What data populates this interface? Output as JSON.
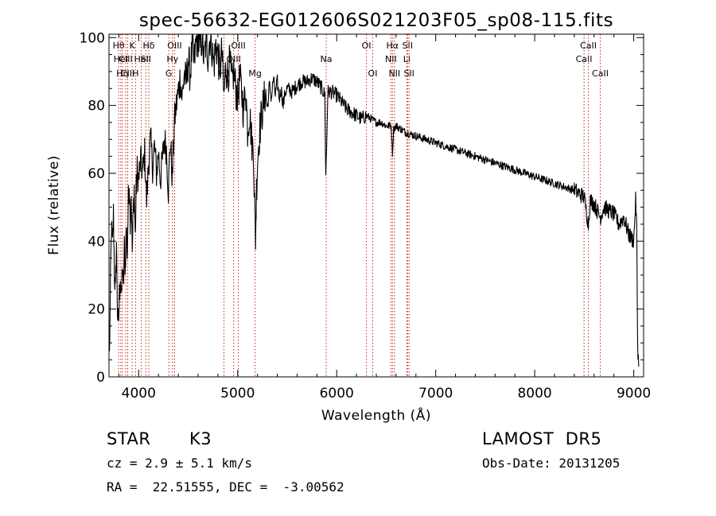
{
  "chart_data": {
    "type": "line",
    "title": "spec-56632-EG012606S021203F05_sp08-115.fits",
    "xlabel": "Wavelength (Å)",
    "ylabel": "Flux (relative)",
    "xlim": [
      3700,
      9100
    ],
    "ylim": [
      0,
      101
    ],
    "x_ticks": [
      4000,
      5000,
      6000,
      7000,
      8000,
      9000
    ],
    "y_ticks": [
      0,
      20,
      40,
      60,
      80,
      100
    ],
    "grid": false,
    "series": [
      {
        "color": "#000000",
        "anchors": [
          [
            3705,
            6
          ],
          [
            3715,
            28
          ],
          [
            3725,
            44
          ],
          [
            3735,
            38
          ],
          [
            3745,
            48
          ],
          [
            3755,
            31
          ],
          [
            3765,
            24
          ],
          [
            3775,
            40
          ],
          [
            3785,
            20
          ],
          [
            3795,
            14
          ],
          [
            3805,
            24
          ],
          [
            3815,
            30
          ],
          [
            3825,
            22
          ],
          [
            3835,
            33
          ],
          [
            3845,
            25
          ],
          [
            3855,
            38
          ],
          [
            3865,
            32
          ],
          [
            3875,
            45
          ],
          [
            3885,
            36
          ],
          [
            3895,
            52
          ],
          [
            3905,
            58
          ],
          [
            3915,
            47
          ],
          [
            3925,
            54
          ],
          [
            3935,
            37
          ],
          [
            3945,
            48
          ],
          [
            3955,
            56
          ],
          [
            3965,
            41
          ],
          [
            3975,
            55
          ],
          [
            3985,
            61
          ],
          [
            4000,
            58
          ],
          [
            4020,
            64
          ],
          [
            4040,
            60
          ],
          [
            4060,
            66
          ],
          [
            4080,
            52
          ],
          [
            4100,
            63
          ],
          [
            4120,
            70
          ],
          [
            4140,
            62
          ],
          [
            4160,
            68
          ],
          [
            4180,
            60
          ],
          [
            4200,
            66
          ],
          [
            4220,
            58
          ],
          [
            4240,
            64
          ],
          [
            4260,
            70
          ],
          [
            4280,
            67
          ],
          [
            4300,
            55
          ],
          [
            4320,
            70
          ],
          [
            4340,
            58
          ],
          [
            4360,
            75
          ],
          [
            4380,
            80
          ],
          [
            4400,
            84
          ],
          [
            4420,
            88
          ],
          [
            4440,
            82
          ],
          [
            4460,
            90
          ],
          [
            4480,
            86
          ],
          [
            4500,
            94
          ],
          [
            4520,
            89
          ],
          [
            4540,
            97
          ],
          [
            4560,
            92
          ],
          [
            4580,
            99
          ],
          [
            4600,
            100
          ],
          [
            4620,
            96
          ],
          [
            4640,
            100
          ],
          [
            4660,
            93
          ],
          [
            4680,
            99
          ],
          [
            4700,
            95
          ],
          [
            4720,
            100
          ],
          [
            4740,
            97
          ],
          [
            4760,
            92
          ],
          [
            4780,
            98
          ],
          [
            4800,
            95
          ],
          [
            4820,
            90
          ],
          [
            4840,
            96
          ],
          [
            4860,
            82
          ],
          [
            4880,
            92
          ],
          [
            4900,
            88
          ],
          [
            4920,
            93
          ],
          [
            4940,
            86
          ],
          [
            4960,
            90
          ],
          [
            4980,
            85
          ],
          [
            5000,
            82
          ],
          [
            5020,
            88
          ],
          [
            5040,
            84
          ],
          [
            5060,
            78
          ],
          [
            5080,
            86
          ],
          [
            5100,
            73
          ],
          [
            5120,
            78
          ],
          [
            5140,
            70
          ],
          [
            5160,
            66
          ],
          [
            5170,
            52
          ],
          [
            5180,
            41
          ],
          [
            5190,
            55
          ],
          [
            5200,
            64
          ],
          [
            5220,
            72
          ],
          [
            5240,
            77
          ],
          [
            5260,
            80
          ],
          [
            5280,
            84
          ],
          [
            5300,
            79
          ],
          [
            5320,
            86
          ],
          [
            5340,
            82
          ],
          [
            5360,
            88
          ],
          [
            5380,
            83
          ],
          [
            5400,
            87
          ],
          [
            5420,
            82
          ],
          [
            5440,
            85
          ],
          [
            5460,
            80
          ],
          [
            5480,
            84
          ],
          [
            5500,
            85
          ],
          [
            5550,
            84
          ],
          [
            5600,
            86
          ],
          [
            5650,
            87
          ],
          [
            5700,
            87
          ],
          [
            5750,
            88
          ],
          [
            5800,
            87
          ],
          [
            5850,
            85
          ],
          [
            5880,
            83
          ],
          [
            5890,
            59
          ],
          [
            5900,
            70
          ],
          [
            5910,
            84
          ],
          [
            5950,
            84
          ],
          [
            6000,
            83
          ],
          [
            6050,
            81
          ],
          [
            6100,
            79
          ],
          [
            6150,
            78
          ],
          [
            6200,
            77
          ],
          [
            6250,
            76
          ],
          [
            6300,
            77
          ],
          [
            6350,
            76
          ],
          [
            6400,
            75
          ],
          [
            6450,
            75
          ],
          [
            6500,
            74
          ],
          [
            6550,
            74
          ],
          [
            6563,
            66
          ],
          [
            6575,
            73
          ],
          [
            6600,
            74
          ],
          [
            6650,
            73
          ],
          [
            6700,
            72
          ],
          [
            6800,
            71
          ],
          [
            6900,
            70
          ],
          [
            7000,
            69
          ],
          [
            7100,
            68
          ],
          [
            7200,
            67
          ],
          [
            7300,
            66
          ],
          [
            7400,
            65
          ],
          [
            7500,
            64
          ],
          [
            7600,
            63
          ],
          [
            7700,
            62
          ],
          [
            7800,
            61
          ],
          [
            7900,
            60
          ],
          [
            8000,
            59
          ],
          [
            8100,
            58
          ],
          [
            8200,
            57
          ],
          [
            8300,
            56
          ],
          [
            8400,
            55
          ],
          [
            8500,
            53
          ],
          [
            8542,
            45
          ],
          [
            8560,
            52
          ],
          [
            8600,
            51
          ],
          [
            8662,
            47
          ],
          [
            8700,
            50
          ],
          [
            8750,
            49
          ],
          [
            8800,
            48
          ],
          [
            8850,
            45
          ],
          [
            8900,
            47
          ],
          [
            8950,
            42
          ],
          [
            9000,
            40
          ],
          [
            9020,
            52
          ],
          [
            9030,
            44
          ],
          [
            9040,
            10
          ],
          [
            9050,
            3
          ]
        ]
      }
    ],
    "line_color": "#cc2222",
    "line_markers": [
      {
        "wave": 3797,
        "row": 1,
        "label": "Hθ"
      },
      {
        "wave": 3819,
        "row": 2,
        "label": "HeI"
      },
      {
        "wave": 3835,
        "row": 3,
        "label": "Hη"
      },
      {
        "wave": 3869,
        "row": 2,
        "label": "CIII"
      },
      {
        "wave": 3889,
        "row": 3,
        "label": "CIII"
      },
      {
        "wave": 3934,
        "row": 1,
        "label": "K"
      },
      {
        "wave": 3968,
        "row": 3,
        "label": "H"
      },
      {
        "wave": 4026,
        "row": 2,
        "label": "HeI"
      },
      {
        "wave": 4072,
        "row": 2,
        "label": "SII"
      },
      {
        "wave": 4102,
        "row": 1,
        "label": "Hδ"
      },
      {
        "wave": 4304,
        "row": 3,
        "label": "G"
      },
      {
        "wave": 4341,
        "row": 2,
        "label": "Hγ"
      },
      {
        "wave": 4363,
        "row": 1,
        "label": "OIII"
      },
      {
        "wave": 4861,
        "row": 3,
        "label": "Hβ"
      },
      {
        "wave": 4959,
        "row": 2,
        "label": "OIII"
      },
      {
        "wave": 5007,
        "row": 1,
        "label": "OIII"
      },
      {
        "wave": 5175,
        "row": 3,
        "label": "Mg"
      },
      {
        "wave": 5894,
        "row": 2,
        "label": "Na"
      },
      {
        "wave": 6300,
        "row": 1,
        "label": "OI"
      },
      {
        "wave": 6364,
        "row": 3,
        "label": "OI"
      },
      {
        "wave": 6548,
        "row": 2,
        "label": "NII"
      },
      {
        "wave": 6563,
        "row": 1,
        "label": "Hα"
      },
      {
        "wave": 6583,
        "row": 3,
        "label": "NII"
      },
      {
        "wave": 6708,
        "row": 2,
        "label": "Li"
      },
      {
        "wave": 6716,
        "row": 1,
        "label": "SII"
      },
      {
        "wave": 6731,
        "row": 3,
        "label": "SII"
      },
      {
        "wave": 8498,
        "row": 2,
        "label": "CaII"
      },
      {
        "wave": 8542,
        "row": 1,
        "label": "CaII"
      },
      {
        "wave": 8662,
        "row": 3,
        "label": "CaII"
      }
    ]
  },
  "info": {
    "object_class": "STAR",
    "subclass": "K3",
    "survey": "LAMOST  DR5",
    "cz": "cz = 2.9 ± 5.1 km/s",
    "obs_date": "Obs-Date: 20131205",
    "coords": "RA =  22.51555, DEC =  -3.00562"
  }
}
